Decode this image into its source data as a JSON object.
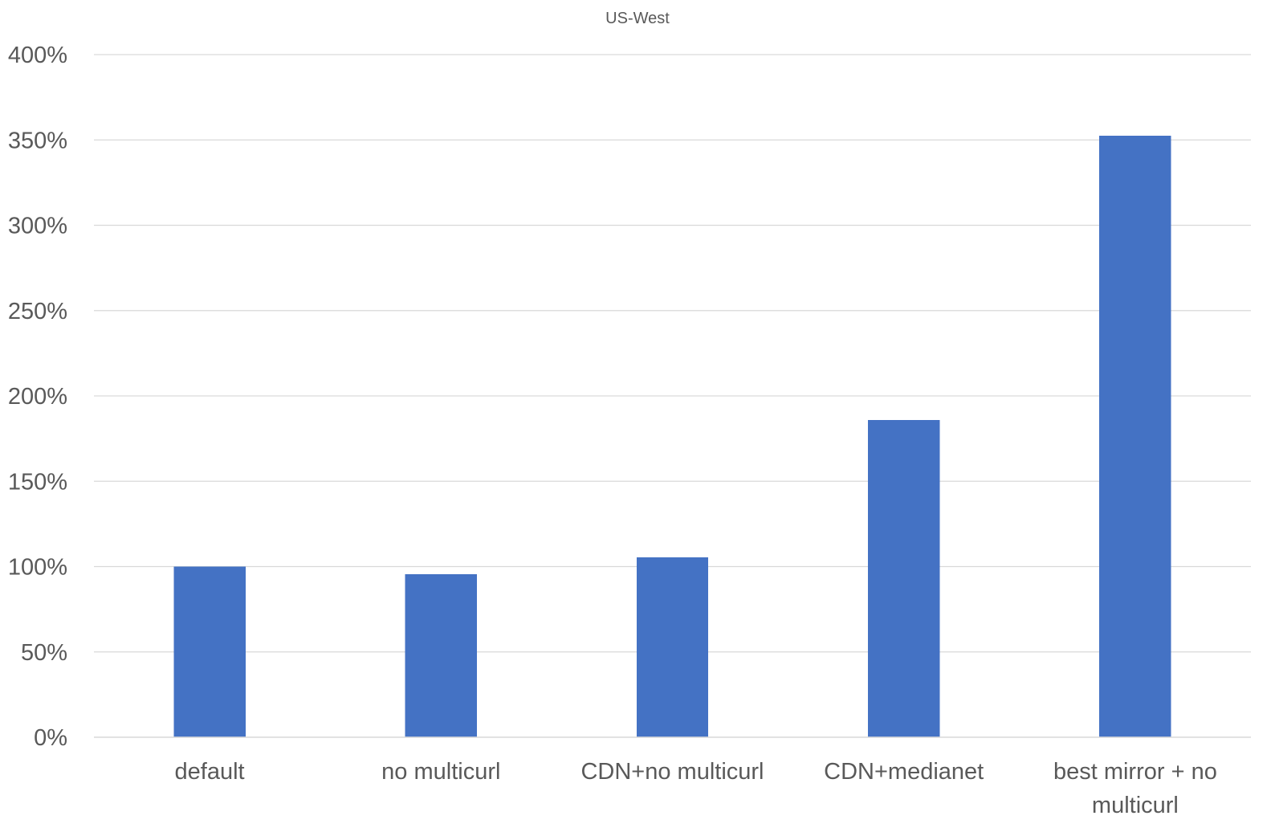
{
  "chart_data": {
    "type": "bar",
    "title": "US-West",
    "categories": [
      "default",
      "no multicurl",
      "CDN+no multicurl",
      "CDN+medianet",
      "best mirror + no multicurl"
    ],
    "category_lines": [
      [
        "default"
      ],
      [
        "no multicurl"
      ],
      [
        "CDN+no multicurl"
      ],
      [
        "CDN+medianet"
      ],
      [
        "best mirror + no",
        "multicurl"
      ]
    ],
    "series": [
      {
        "values": [
          100,
          95.5,
          105.5,
          186,
          352.5
        ],
        "color": "#4472c4"
      }
    ],
    "ylim": [
      0,
      400
    ],
    "yticks": [
      0,
      50,
      100,
      150,
      200,
      250,
      300,
      350,
      400
    ],
    "ytick_labels": [
      "0%",
      "50%",
      "100%",
      "150%",
      "200%",
      "250%",
      "300%",
      "350%",
      "400%"
    ],
    "grid": true,
    "legend": "none"
  }
}
